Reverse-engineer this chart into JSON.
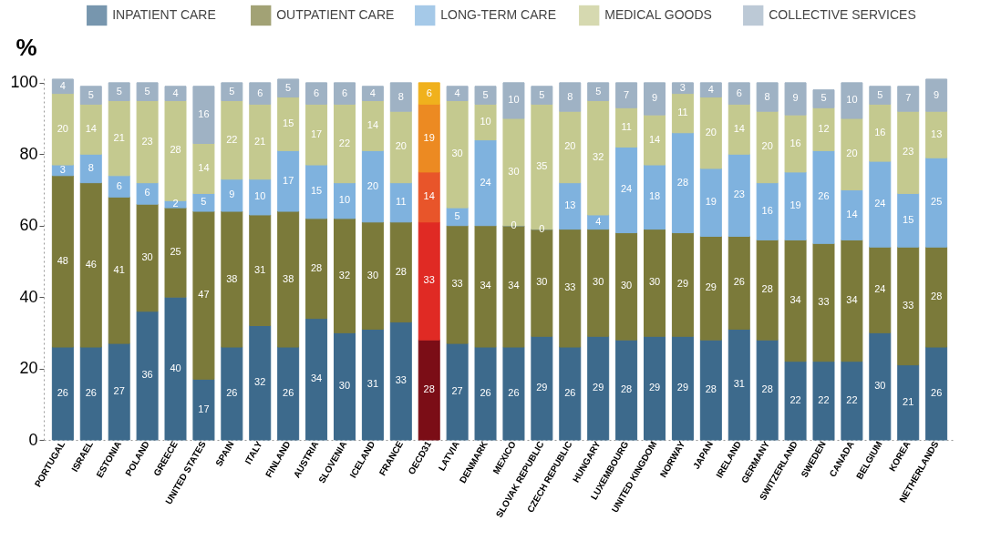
{
  "chart_data": {
    "type": "bar",
    "stacked": true,
    "ylabel": "%",
    "ylim": [
      0,
      102
    ],
    "yticks": [
      0,
      20,
      40,
      60,
      80,
      100
    ],
    "grid": false,
    "legend": "top",
    "data_labels": true,
    "categories": [
      "PORTUGAL",
      "ISRAEL",
      "ESTONIA",
      "POLAND",
      "GREECE",
      "UNITED STATES",
      "SPAIN",
      "ITALY",
      "FINLAND",
      "AUSTRIA",
      "SLOVENIA",
      "ICELAND",
      "FRANCE",
      "OECD31",
      "LATVIA",
      "DENMARK",
      "MEXICO",
      "SLOVAK REPUBLIC",
      "CZECH REPUBLIC",
      "HUNGARY",
      "LUXEMBOURG",
      "UNITED KINGDOM",
      "NORWAY",
      "JAPAN",
      "IRELAND",
      "GERMANY",
      "SWITZERLAND",
      "SWEDEN",
      "CANADA",
      "BELGIUM",
      "KOREA",
      "NETHERLANDS"
    ],
    "series": [
      {
        "name": "INPATIENT CARE",
        "color": "#3d6a8c",
        "colors": [
          "#3d6a8c",
          "#3d6a8c",
          "#3d6a8c",
          "#3d6a8c",
          "#3d6a8c",
          "#3d6a8c",
          "#3d6a8c",
          "#3d6a8c",
          "#3d6a8c",
          "#3d6a8c",
          "#3d6a8c",
          "#3d6a8c",
          "#3d6a8c",
          "#7b0d16",
          "#3d6a8c",
          "#3d6a8c",
          "#3d6a8c",
          "#3d6a8c",
          "#3d6a8c",
          "#3d6a8c",
          "#3d6a8c",
          "#3d6a8c",
          "#3d6a8c",
          "#3d6a8c",
          "#3d6a8c",
          "#3d6a8c",
          "#3d6a8c",
          "#3d6a8c",
          "#3d6a8c",
          "#3d6a8c",
          "#3d6a8c",
          "#3d6a8c"
        ],
        "values": [
          26,
          26,
          27,
          36,
          40,
          17,
          26,
          32,
          26,
          34,
          30,
          31,
          33,
          28,
          27,
          26,
          26,
          29,
          26,
          29,
          28,
          29,
          29,
          28,
          31,
          28,
          22,
          22,
          22,
          30,
          21,
          26
        ]
      },
      {
        "name": "OUTPATIENT CARE",
        "color": "#7b7a3a",
        "colors": [
          "#7b7a3a",
          "#7b7a3a",
          "#7b7a3a",
          "#7b7a3a",
          "#7b7a3a",
          "#7b7a3a",
          "#7b7a3a",
          "#7b7a3a",
          "#7b7a3a",
          "#7b7a3a",
          "#7b7a3a",
          "#7b7a3a",
          "#7b7a3a",
          "#e02a24",
          "#7b7a3a",
          "#7b7a3a",
          "#7b7a3a",
          "#7b7a3a",
          "#7b7a3a",
          "#7b7a3a",
          "#7b7a3a",
          "#7b7a3a",
          "#7b7a3a",
          "#7b7a3a",
          "#7b7a3a",
          "#7b7a3a",
          "#7b7a3a",
          "#7b7a3a",
          "#7b7a3a",
          "#7b7a3a",
          "#7b7a3a",
          "#7b7a3a"
        ],
        "values": [
          48,
          46,
          41,
          30,
          25,
          47,
          38,
          31,
          38,
          28,
          32,
          30,
          28,
          33,
          33,
          34,
          34,
          30,
          33,
          30,
          30,
          30,
          29,
          29,
          26,
          28,
          34,
          33,
          34,
          24,
          33,
          28
        ]
      },
      {
        "name": "LONG-TERM CARE",
        "color": "#7fb2de",
        "colors": [
          "#7fb2de",
          "#7fb2de",
          "#7fb2de",
          "#7fb2de",
          "#7fb2de",
          "#7fb2de",
          "#7fb2de",
          "#7fb2de",
          "#7fb2de",
          "#7fb2de",
          "#7fb2de",
          "#7fb2de",
          "#7fb2de",
          "#e8552a",
          "#7fb2de",
          "#7fb2de",
          "#7fb2de",
          "#7fb2de",
          "#7fb2de",
          "#7fb2de",
          "#7fb2de",
          "#7fb2de",
          "#7fb2de",
          "#7fb2de",
          "#7fb2de",
          "#7fb2de",
          "#7fb2de",
          "#7fb2de",
          "#7fb2de",
          "#7fb2de",
          "#7fb2de",
          "#7fb2de"
        ],
        "values": [
          3,
          8,
          6,
          6,
          2,
          5,
          9,
          10,
          17,
          15,
          10,
          20,
          11,
          14,
          5,
          24,
          0,
          0,
          13,
          4,
          24,
          18,
          28,
          19,
          23,
          16,
          19,
          26,
          14,
          24,
          15,
          25
        ]
      },
      {
        "name": "MEDICAL GOODS",
        "color": "#c4c98f",
        "colors": [
          "#c4c98f",
          "#c4c98f",
          "#c4c98f",
          "#c4c98f",
          "#c4c98f",
          "#c4c98f",
          "#c4c98f",
          "#c4c98f",
          "#c4c98f",
          "#c4c98f",
          "#c4c98f",
          "#c4c98f",
          "#c4c98f",
          "#ec8a22",
          "#c4c98f",
          "#c4c98f",
          "#c4c98f",
          "#c4c98f",
          "#c4c98f",
          "#c4c98f",
          "#c4c98f",
          "#c4c98f",
          "#c4c98f",
          "#c4c98f",
          "#c4c98f",
          "#c4c98f",
          "#c4c98f",
          "#c4c98f",
          "#c4c98f",
          "#c4c98f",
          "#c4c98f",
          "#c4c98f"
        ],
        "values": [
          20,
          14,
          21,
          23,
          28,
          14,
          22,
          21,
          15,
          17,
          22,
          14,
          20,
          19,
          30,
          10,
          30,
          35,
          20,
          32,
          11,
          14,
          11,
          20,
          14,
          20,
          16,
          12,
          20,
          16,
          23,
          13
        ]
      },
      {
        "name": "COLLECTIVE SERVICES",
        "color": "#9fb2c4",
        "colors": [
          "#9fb2c4",
          "#9fb2c4",
          "#9fb2c4",
          "#9fb2c4",
          "#9fb2c4",
          "#9fb2c4",
          "#9fb2c4",
          "#9fb2c4",
          "#9fb2c4",
          "#9fb2c4",
          "#9fb2c4",
          "#9fb2c4",
          "#9fb2c4",
          "#f0b11d",
          "#9fb2c4",
          "#9fb2c4",
          "#9fb2c4",
          "#9fb2c4",
          "#9fb2c4",
          "#9fb2c4",
          "#9fb2c4",
          "#9fb2c4",
          "#9fb2c4",
          "#9fb2c4",
          "#9fb2c4",
          "#9fb2c4",
          "#9fb2c4",
          "#9fb2c4",
          "#9fb2c4",
          "#9fb2c4",
          "#9fb2c4",
          "#9fb2c4"
        ],
        "values": [
          4,
          5,
          5,
          5,
          4,
          16,
          5,
          6,
          5,
          6,
          6,
          4,
          8,
          6,
          4,
          5,
          10,
          5,
          8,
          5,
          7,
          9,
          3,
          4,
          6,
          8,
          9,
          5,
          10,
          5,
          7,
          9
        ]
      }
    ]
  }
}
